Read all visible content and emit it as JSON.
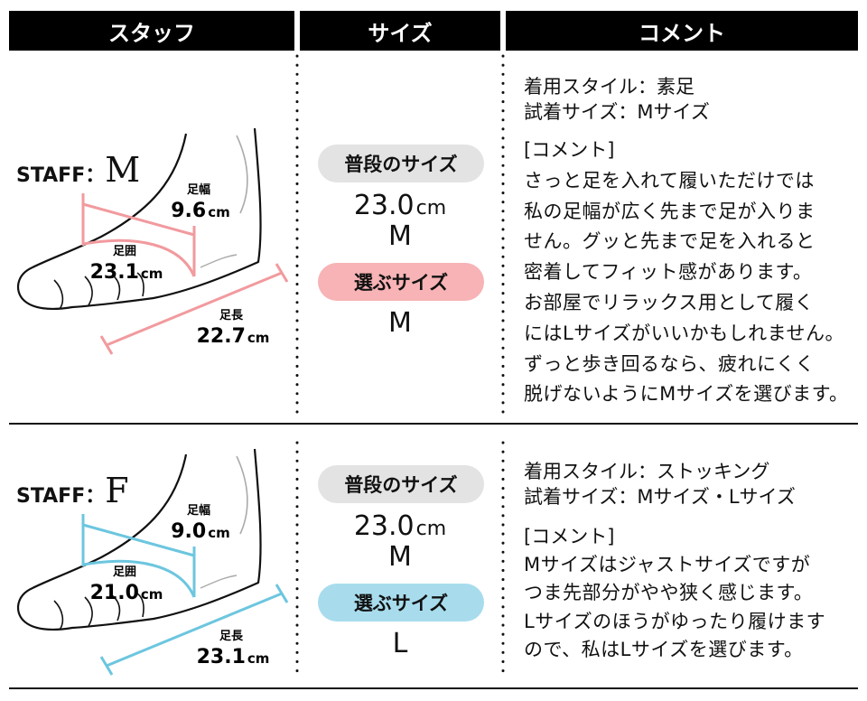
{
  "header": [
    "スタッフ",
    "サイズ",
    "コメント"
  ],
  "rows": [
    {
      "staff_prefix": "STAFF：",
      "staff_name": "M",
      "color": "#f29a9e",
      "pill_color": "#f7b3b5",
      "width": {
        "label": "足幅",
        "value": "9.6",
        "unit": "cm"
      },
      "girth": {
        "label": "足囲",
        "value": "23.1",
        "unit": "cm"
      },
      "length": {
        "label": "足長",
        "value": "22.7",
        "unit": "cm"
      },
      "usual_label": "普段のサイズ",
      "usual_size": "23.0",
      "usual_unit": "cm",
      "usual_letter": "M",
      "chosen_label": "選ぶサイズ",
      "chosen_size": "M",
      "style": "着用スタイル：素足",
      "tried": "試着サイズ：Mサイズ",
      "comment_heading": "[コメント]",
      "comment_lines": [
        "さっと足を入れて履いただけでは",
        "私の足幅が広く先まで足が入りま",
        "せん。グッと先まで足を入れると",
        "密着してフィット感があります。",
        "お部屋でリラックス用として履く",
        "にはLサイズがいいかもしれません。",
        "ずっと歩き回るなら、疲れにくく",
        "脱げないようにMサイズを選びます。"
      ]
    },
    {
      "staff_prefix": "STAFF：",
      "staff_name": "F",
      "color": "#6cc6df",
      "pill_color": "#a8dced",
      "width": {
        "label": "足幅",
        "value": "9.0",
        "unit": "cm"
      },
      "girth": {
        "label": "足囲",
        "value": "21.0",
        "unit": "cm"
      },
      "length": {
        "label": "足長",
        "value": "23.1",
        "unit": "cm"
      },
      "usual_label": "普段のサイズ",
      "usual_size": "23.0",
      "usual_unit": "cm",
      "usual_letter": "M",
      "chosen_label": "選ぶサイズ",
      "chosen_size": "L",
      "style": "着用スタイル：ストッキング",
      "tried": "試着サイズ：Mサイズ・Lサイズ",
      "comment_heading": "[コメント]",
      "comment_lines": [
        "Mサイズはジャストサイズですが",
        "つま先部分がやや狭く感じます。",
        "Lサイズのほうがゆったり履けます",
        "ので、私はLサイズを選びます。"
      ]
    }
  ]
}
